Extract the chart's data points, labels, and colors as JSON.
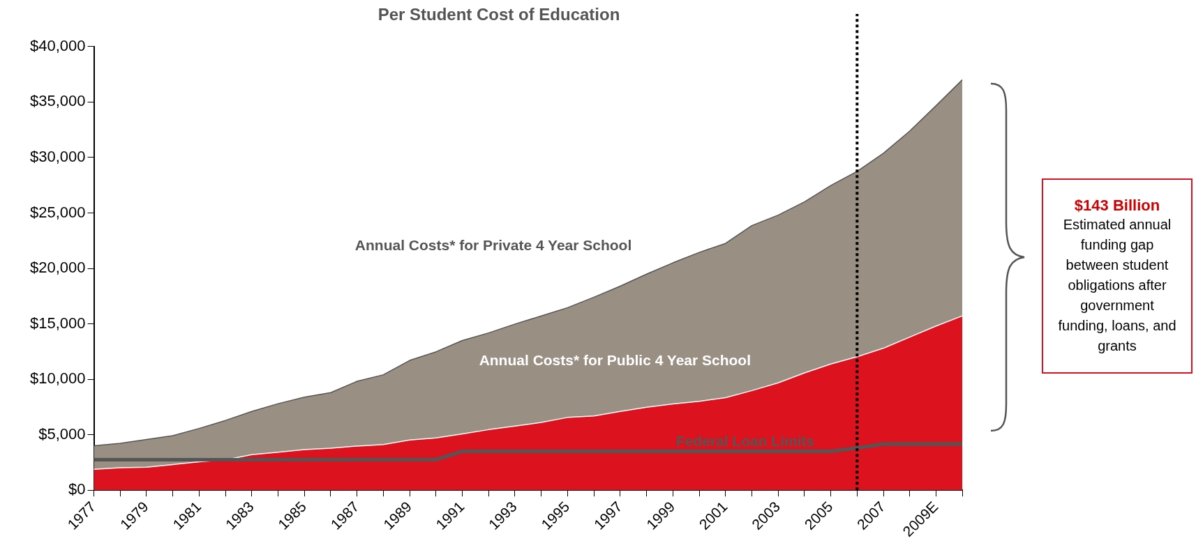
{
  "chart_data": {
    "type": "area",
    "title": "Per Student Cost of Education",
    "x": [
      1977,
      1978,
      1979,
      1980,
      1981,
      1982,
      1983,
      1984,
      1985,
      1986,
      1987,
      1988,
      1989,
      1990,
      1991,
      1992,
      1993,
      1994,
      1995,
      1996,
      1997,
      1998,
      1999,
      2000,
      2001,
      2002,
      2003,
      2004,
      2005,
      2006,
      2007,
      2008,
      2009,
      2010
    ],
    "series": [
      {
        "name": "Annual Costs* for Private 4 Year School",
        "color": "#9a8f83",
        "values": [
          4000,
          4220,
          4570,
          4920,
          5570,
          6290,
          7100,
          7800,
          8390,
          8800,
          9820,
          10410,
          11700,
          12480,
          13500,
          14180,
          14980,
          15710,
          16460,
          17400,
          18400,
          19480,
          20500,
          21440,
          22250,
          23860,
          24800,
          26000,
          27470,
          28750,
          30380,
          32380,
          34670,
          37010
        ]
      },
      {
        "name": "Annual Costs* for Public 4 Year School",
        "color": "#dc121f",
        "values": [
          1880,
          2020,
          2070,
          2310,
          2560,
          2740,
          3200,
          3420,
          3660,
          3790,
          3980,
          4120,
          4520,
          4710,
          5080,
          5460,
          5780,
          6110,
          6560,
          6700,
          7100,
          7480,
          7770,
          8020,
          8340,
          8980,
          9680,
          10570,
          11370,
          12030,
          12800,
          13800,
          14800,
          15720
        ]
      },
      {
        "name": "Federal Loan Limits",
        "type": "line",
        "color": "#555555",
        "values": [
          2750,
          2750,
          2750,
          2750,
          2750,
          2750,
          2750,
          2750,
          2750,
          2750,
          2750,
          2750,
          2750,
          2750,
          3500,
          3500,
          3500,
          3500,
          3500,
          3500,
          3500,
          3500,
          3500,
          3500,
          3500,
          3500,
          3500,
          3500,
          3500,
          3800,
          4160,
          4160,
          4160,
          4160
        ]
      }
    ],
    "xlim": [
      1977,
      2010
    ],
    "xticks": [
      {
        "value": 1977,
        "label": "1977"
      },
      {
        "value": 1978,
        "label": null
      },
      {
        "value": 1979,
        "label": "1979"
      },
      {
        "value": 1980,
        "label": null
      },
      {
        "value": 1981,
        "label": "1981"
      },
      {
        "value": 1982,
        "label": null
      },
      {
        "value": 1983,
        "label": "1983"
      },
      {
        "value": 1984,
        "label": null
      },
      {
        "value": 1985,
        "label": "1985"
      },
      {
        "value": 1986,
        "label": null
      },
      {
        "value": 1987,
        "label": "1987"
      },
      {
        "value": 1988,
        "label": null
      },
      {
        "value": 1989,
        "label": "1989"
      },
      {
        "value": 1990,
        "label": null
      },
      {
        "value": 1991,
        "label": "1991"
      },
      {
        "value": 1992,
        "label": null
      },
      {
        "value": 1993,
        "label": "1993"
      },
      {
        "value": 1994,
        "label": null
      },
      {
        "value": 1995,
        "label": "1995"
      },
      {
        "value": 1996,
        "label": null
      },
      {
        "value": 1997,
        "label": "1997"
      },
      {
        "value": 1998,
        "label": null
      },
      {
        "value": 1999,
        "label": "1999"
      },
      {
        "value": 2000,
        "label": null
      },
      {
        "value": 2001,
        "label": "2001"
      },
      {
        "value": 2002,
        "label": null
      },
      {
        "value": 2003,
        "label": "2003"
      },
      {
        "value": 2004,
        "label": null
      },
      {
        "value": 2005,
        "label": "2005"
      },
      {
        "value": 2006,
        "label": null
      },
      {
        "value": 2007,
        "label": "2007"
      },
      {
        "value": 2008,
        "label": null
      },
      {
        "value": 2009,
        "label": "2009E"
      },
      {
        "value": 2010,
        "label": null
      }
    ],
    "ylim": [
      0,
      40000
    ],
    "yticks": [
      {
        "value": 0,
        "label": "$0"
      },
      {
        "value": 5000,
        "label": "$5,000"
      },
      {
        "value": 10000,
        "label": "$10,000"
      },
      {
        "value": 15000,
        "label": "$15,000"
      },
      {
        "value": 20000,
        "label": "$20,000"
      },
      {
        "value": 25000,
        "label": "$25,000"
      },
      {
        "value": 30000,
        "label": "$30,000"
      },
      {
        "value": 35000,
        "label": "$35,000"
      },
      {
        "value": 40000,
        "label": "$40,000"
      }
    ],
    "ref_lines": [
      {
        "axis": "x",
        "value": 2006,
        "color": "#000000",
        "line_style": "dotted"
      }
    ],
    "annotations": [
      "$143 Billion",
      "Estimated annual funding gap between student obligations after government funding, loans, and grants"
    ],
    "grid": false,
    "legend": false
  }
}
